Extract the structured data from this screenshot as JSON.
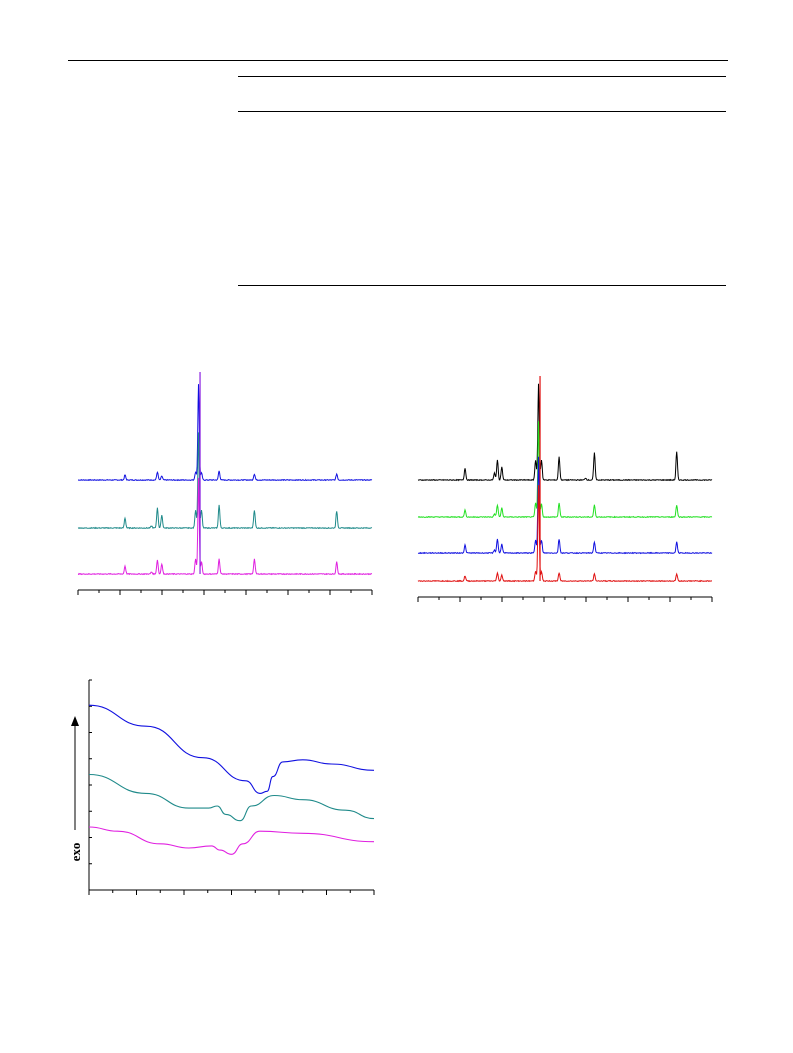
{
  "page": {
    "header_rule": true
  },
  "table": {
    "rows": []
  },
  "colors": {
    "blue": "#1010e0",
    "teal": "#1f8a8a",
    "magenta": "#e020e0",
    "black": "#000000",
    "green": "#22e022",
    "red": "#e01010",
    "purple": "#8a20e0"
  },
  "chart_data": [
    {
      "type": "line",
      "title": "",
      "xlabel": "",
      "ylabel": "",
      "grid": false,
      "legend": "none",
      "series": [
        {
          "color": "#1010e0",
          "peaks": [
            [
              0.16,
              10
            ],
            [
              0.27,
              16
            ],
            [
              0.285,
              8
            ],
            [
              0.4,
              16
            ],
            [
              0.41,
              100
            ],
            [
              0.42,
              14
            ],
            [
              0.48,
              18
            ],
            [
              0.6,
              12
            ],
            [
              0.88,
              12
            ]
          ]
        },
        {
          "color": "#1f8a8a",
          "peaks": [
            [
              0.16,
              20
            ],
            [
              0.25,
              4
            ],
            [
              0.27,
              40
            ],
            [
              0.285,
              26
            ],
            [
              0.4,
              36
            ],
            [
              0.41,
              100
            ],
            [
              0.42,
              36
            ],
            [
              0.48,
              46
            ],
            [
              0.6,
              36
            ],
            [
              0.88,
              34
            ]
          ]
        },
        {
          "color": "#e020e0",
          "peaks": [
            [
              0.16,
              16
            ],
            [
              0.25,
              4
            ],
            [
              0.27,
              28
            ],
            [
              0.285,
              20
            ],
            [
              0.4,
              30
            ],
            [
              0.41,
              100
            ],
            [
              0.42,
              24
            ],
            [
              0.48,
              30
            ],
            [
              0.6,
              30
            ],
            [
              0.88,
              24
            ]
          ]
        }
      ]
    },
    {
      "type": "line",
      "title": "",
      "xlabel": "",
      "ylabel": "",
      "grid": false,
      "legend": "none",
      "series": [
        {
          "color": "#000000",
          "peaks": [
            [
              0.16,
              24
            ],
            [
              0.26,
              14
            ],
            [
              0.27,
              40
            ],
            [
              0.285,
              26
            ],
            [
              0.4,
              40
            ],
            [
              0.41,
              100
            ],
            [
              0.42,
              40
            ],
            [
              0.48,
              46
            ],
            [
              0.57,
              4
            ],
            [
              0.6,
              54
            ],
            [
              0.88,
              56
            ]
          ]
        },
        {
          "color": "#22e022",
          "peaks": [
            [
              0.16,
              14
            ],
            [
              0.26,
              6
            ],
            [
              0.27,
              24
            ],
            [
              0.285,
              18
            ],
            [
              0.4,
              28
            ],
            [
              0.41,
              100
            ],
            [
              0.42,
              26
            ],
            [
              0.48,
              28
            ],
            [
              0.6,
              24
            ],
            [
              0.88,
              24
            ]
          ]
        },
        {
          "color": "#1010e0",
          "peaks": [
            [
              0.16,
              16
            ],
            [
              0.26,
              6
            ],
            [
              0.27,
              28
            ],
            [
              0.285,
              18
            ],
            [
              0.4,
              26
            ],
            [
              0.41,
              100
            ],
            [
              0.42,
              26
            ],
            [
              0.48,
              28
            ],
            [
              0.6,
              22
            ],
            [
              0.88,
              22
            ]
          ]
        },
        {
          "color": "#e01010",
          "peaks": [
            [
              0.16,
              10
            ],
            [
              0.27,
              16
            ],
            [
              0.285,
              12
            ],
            [
              0.4,
              20
            ],
            [
              0.41,
              100
            ],
            [
              0.42,
              18
            ],
            [
              0.48,
              16
            ],
            [
              0.6,
              14
            ],
            [
              0.88,
              14
            ]
          ]
        }
      ]
    },
    {
      "type": "line",
      "title": "",
      "xlabel": "",
      "ylabel": "exo",
      "grid": false,
      "legend": "none",
      "series": [
        {
          "color": "#1010e0",
          "points": [
            [
              0,
              0.88
            ],
            [
              0.2,
              0.78
            ],
            [
              0.4,
              0.63
            ],
            [
              0.55,
              0.52
            ],
            [
              0.6,
              0.46
            ],
            [
              0.625,
              0.47
            ],
            [
              0.645,
              0.54
            ],
            [
              0.68,
              0.61
            ],
            [
              0.75,
              0.62
            ],
            [
              0.85,
              0.6
            ],
            [
              1,
              0.57
            ]
          ]
        },
        {
          "color": "#1f8a8a",
          "points": [
            [
              0,
              0.55
            ],
            [
              0.2,
              0.46
            ],
            [
              0.35,
              0.39
            ],
            [
              0.42,
              0.39
            ],
            [
              0.45,
              0.4
            ],
            [
              0.48,
              0.36
            ],
            [
              0.53,
              0.33
            ],
            [
              0.57,
              0.4
            ],
            [
              0.65,
              0.45
            ],
            [
              0.75,
              0.43
            ],
            [
              0.9,
              0.38
            ],
            [
              1,
              0.34
            ]
          ]
        },
        {
          "color": "#e020e0",
          "points": [
            [
              0,
              0.3
            ],
            [
              0.1,
              0.28
            ],
            [
              0.25,
              0.22
            ],
            [
              0.35,
              0.2
            ],
            [
              0.43,
              0.21
            ],
            [
              0.46,
              0.19
            ],
            [
              0.5,
              0.17
            ],
            [
              0.54,
              0.22
            ],
            [
              0.6,
              0.28
            ],
            [
              0.75,
              0.27
            ],
            [
              1,
              0.23
            ]
          ]
        }
      ]
    }
  ]
}
